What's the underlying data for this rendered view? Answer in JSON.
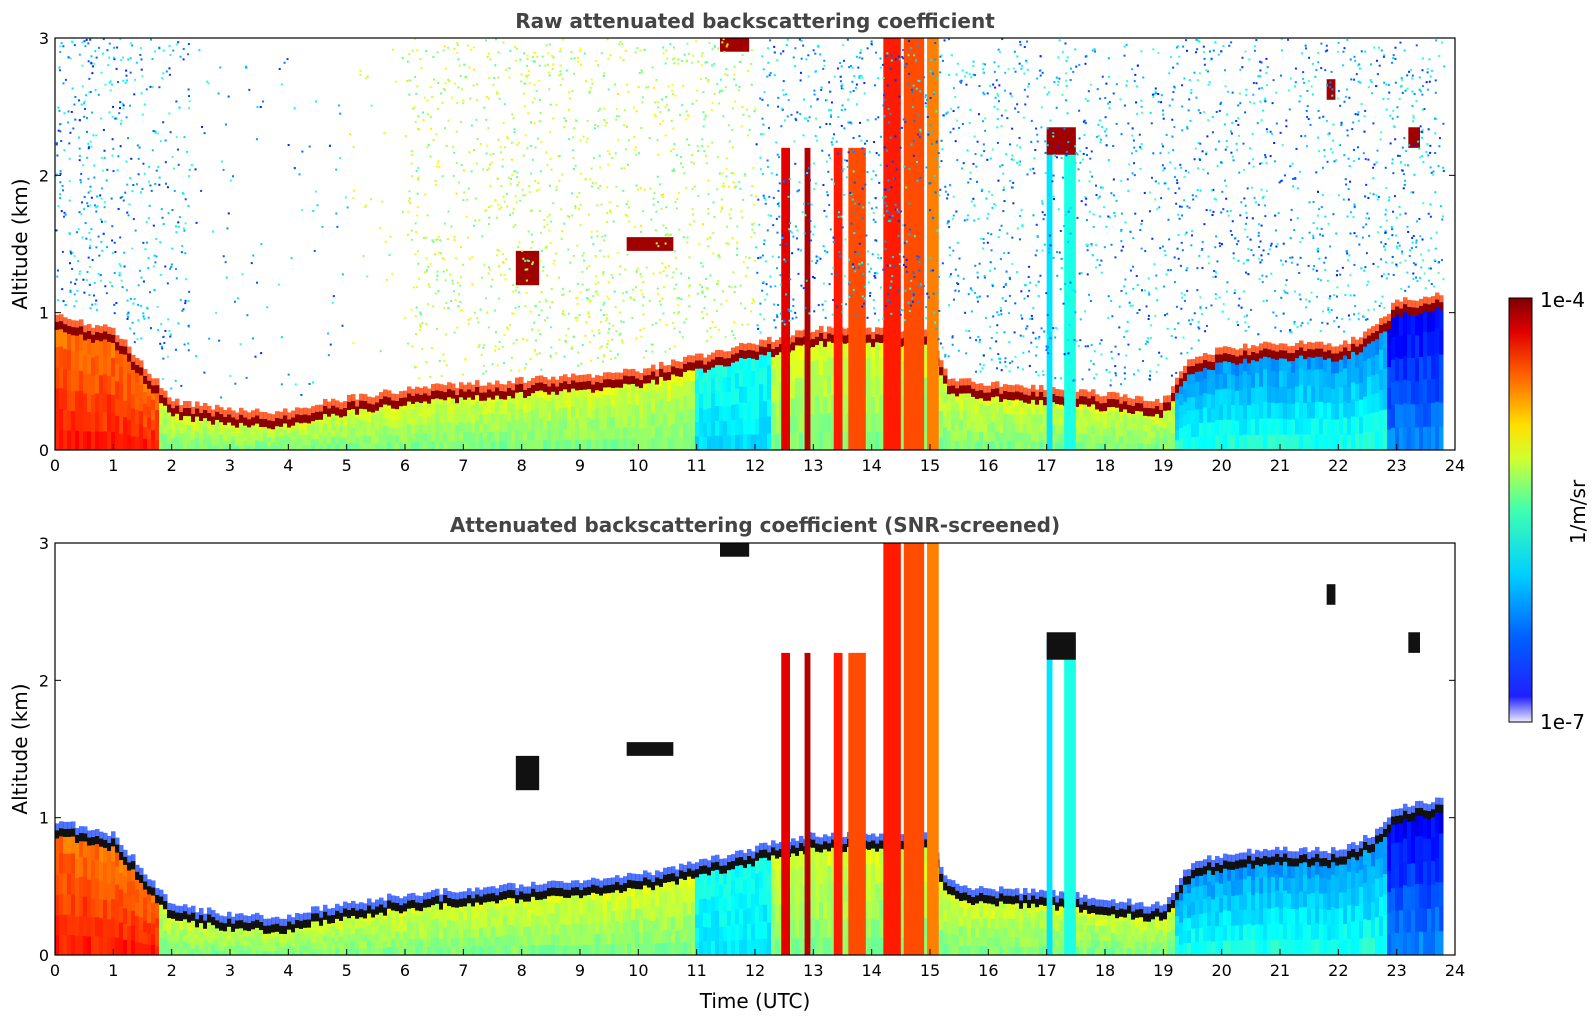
{
  "chart_data": [
    {
      "type": "heatmap",
      "title": "Raw attenuated backscattering coefficient",
      "xlabel": "",
      "ylabel": "Altitude (km)",
      "xlim": [
        0,
        24
      ],
      "ylim": [
        0,
        3
      ],
      "x_ticks": [
        "0",
        "1",
        "2",
        "3",
        "4",
        "5",
        "6",
        "7",
        "8",
        "9",
        "10",
        "11",
        "12",
        "13",
        "14",
        "15",
        "16",
        "17",
        "18",
        "19",
        "20",
        "21",
        "22",
        "23",
        "24"
      ],
      "y_ticks": [
        "0",
        "1",
        "2",
        "3"
      ],
      "color_scale": "log",
      "value_range": [
        1e-07,
        0.0001
      ],
      "layers": [
        {
          "name": "",
          "description_units": "km",
          "x": [
            0,
            0.5,
            1,
            1.5,
            2,
            2.5,
            3,
            3.5,
            4,
            4.5,
            5,
            5.5,
            6,
            6.5,
            7,
            7.5,
            8,
            8.5,
            9,
            9.5,
            10,
            10.5
          ],
          "top": [
            0.95,
            0.9,
            0.85,
            0.6,
            0.35,
            0.25,
            0.22,
            0.2,
            0.2,
            0.26,
            0.3,
            0.33,
            0.36,
            0.38,
            0.4,
            0.4,
            0.42,
            0.44,
            0.45,
            0.48,
            0.5,
            0.55
          ]
        },
        {
          "x": [
            15.3,
            16,
            17,
            18,
            19,
            19.5,
            20,
            20.5,
            21,
            21.5,
            22,
            22.5,
            23,
            23.5
          ],
          "top": [
            0.45,
            0.4,
            0.38,
            0.35,
            0.3,
            0.6,
            0.65,
            0.7,
            0.72,
            0.7,
            0.68,
            0.8,
            1.0,
            1.1
          ]
        }
      ]
    },
    {
      "type": "heatmap",
      "title": "Attenuated backscattering coefficient (SNR-screened)",
      "xlabel": "Time (UTC)",
      "ylabel": "Altitude (km)",
      "xlim": [
        0,
        24
      ],
      "ylim": [
        0,
        3
      ],
      "x_ticks": [
        "0",
        "1",
        "2",
        "3",
        "4",
        "5",
        "6",
        "7",
        "8",
        "9",
        "10",
        "11",
        "12",
        "13",
        "14",
        "15",
        "16",
        "17",
        "18",
        "19",
        "20",
        "21",
        "22",
        "23",
        "24"
      ],
      "y_ticks": [
        "0",
        "1",
        "2",
        "3"
      ],
      "color_scale": "log",
      "value_range": [
        1e-07,
        0.0001
      ]
    }
  ],
  "colorbar": {
    "label": "1/m/sr",
    "max_label": "1e-4",
    "min_label": "1e-7",
    "colormap": "jet",
    "colors": [
      "#ececff",
      "#0000ff",
      "#0080ff",
      "#00ffff",
      "#80ff80",
      "#ffff00",
      "#ff8000",
      "#ff0000",
      "#800000"
    ]
  }
}
